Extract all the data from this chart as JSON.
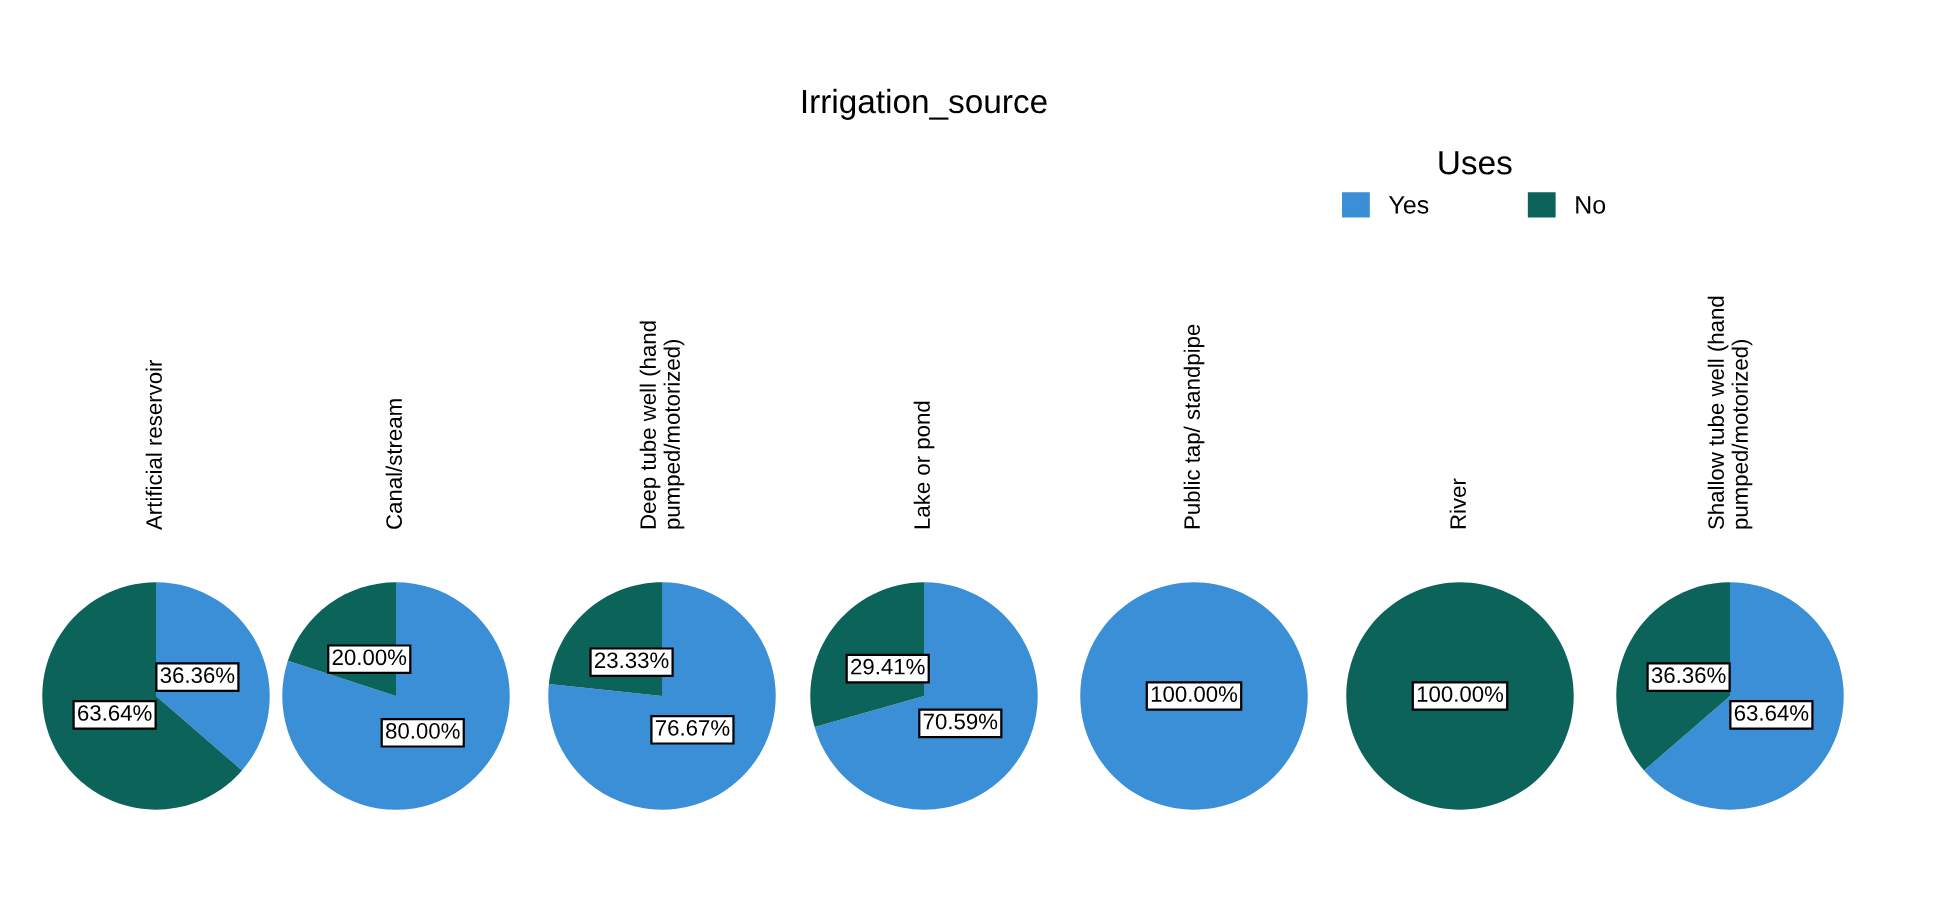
{
  "chart_data": [
    {
      "type": "pie",
      "subtitle": "Artificial reservoir",
      "values": [
        36.36,
        63.64
      ],
      "colors": [
        "#3a8fd6",
        "#0b6359"
      ],
      "value_labels": [
        "36.36%",
        "63.64%"
      ]
    },
    {
      "type": "pie",
      "subtitle": "Canal/stream",
      "values": [
        80.0,
        20.0
      ],
      "colors": [
        "#3a8fd6",
        "#0b6359"
      ],
      "value_labels": [
        "80.00%",
        "20.00%"
      ]
    },
    {
      "type": "pie",
      "subtitle": "Deep tube well (hand\npumped/motorized)",
      "values": [
        76.67,
        23.33
      ],
      "colors": [
        "#3a8fd6",
        "#0b6359"
      ],
      "value_labels": [
        "76.67%",
        "23.33%"
      ]
    },
    {
      "type": "pie",
      "title": "Irrigation_source",
      "subtitle": "Lake or pond",
      "values": [
        70.59,
        29.41
      ],
      "colors": [
        "#3a8fd6",
        "#0b6359"
      ],
      "value_labels": [
        "70.59%",
        "29.41%"
      ]
    },
    {
      "type": "pie",
      "subtitle": "Public tap/ standpipe",
      "values": [
        100,
        0
      ],
      "colors": [
        "#3a8fd6",
        "#0b6359"
      ],
      "value_labels": [
        "100.00%",
        null
      ]
    },
    {
      "type": "pie",
      "subtitle": "River",
      "values": [
        0,
        100
      ],
      "colors": [
        "#3a8fd6",
        "#0b6359"
      ],
      "value_labels": [
        null,
        "100.00%"
      ]
    },
    {
      "type": "pie",
      "legend_title": "Uses",
      "legend": "top",
      "categories": [
        "Yes",
        "No"
      ],
      "subtitle": "Shallow tube well (hand\npumped/motorized)",
      "values": [
        63.64,
        36.36
      ],
      "colors": [
        "#3a8fd6",
        "#0b6359"
      ],
      "value_labels": [
        "63.64%",
        "36.36%"
      ]
    }
  ]
}
